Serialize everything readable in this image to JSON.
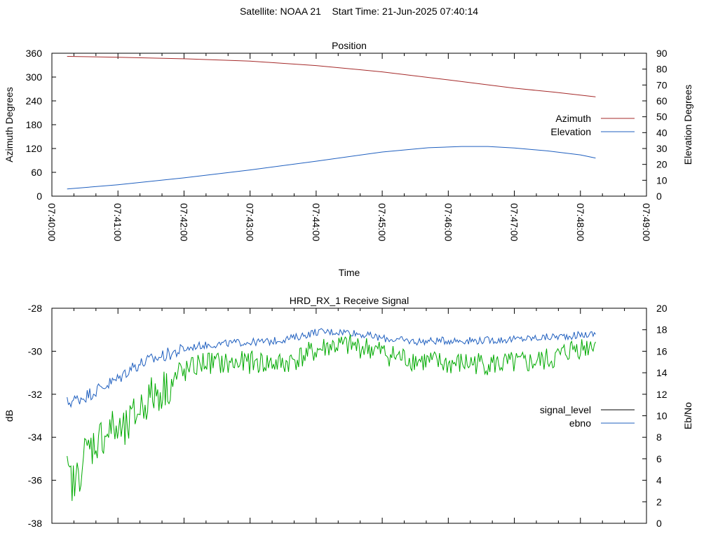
{
  "figure_title": "Satellite: NOAA 21    Start Time: 21-Jun-2025 07:40:14",
  "colors": {
    "azimuth": "#a52a2a",
    "elevation": "#1f5fbf",
    "signal_level": "#000000",
    "ebno": "#1f5fbf",
    "green_trace": "#00aa00"
  },
  "chart_data": [
    {
      "type": "line",
      "title": "Position",
      "xlabel": "Time",
      "ylabel": "Azimuth Degrees",
      "y2label": "Elevation Degrees",
      "x_ticks": [
        "07:40:00",
        "07:41:00",
        "07:42:00",
        "07:43:00",
        "07:44:00",
        "07:45:00",
        "07:46:00",
        "07:47:00",
        "07:48:00",
        "07:49:00"
      ],
      "xlim_minutes": [
        0,
        9
      ],
      "ylim": [
        0,
        360
      ],
      "y_ticks": [
        "0",
        "60",
        "120",
        "180",
        "240",
        "300",
        "360"
      ],
      "y2lim": [
        0,
        90
      ],
      "y2_ticks": [
        "0",
        "10",
        "20",
        "30",
        "40",
        "50",
        "60",
        "70",
        "80",
        "90"
      ],
      "legend_position": "right",
      "series": [
        {
          "name": "Azimuth",
          "axis": "y",
          "color_key": "azimuth",
          "points_minutes": [
            [
              0.23,
              352
            ],
            [
              1,
              350
            ],
            [
              2,
              346
            ],
            [
              3,
              340
            ],
            [
              4,
              329
            ],
            [
              5,
              313
            ],
            [
              6,
              293
            ],
            [
              7,
              272
            ],
            [
              7.6,
              262
            ],
            [
              8.23,
              250
            ]
          ]
        },
        {
          "name": "Elevation",
          "axis": "y2",
          "color_key": "elevation",
          "points_minutes": [
            [
              0.23,
              4.5
            ],
            [
              1,
              7.2
            ],
            [
              2,
              11.5
            ],
            [
              3,
              16.5
            ],
            [
              4,
              22
            ],
            [
              5,
              27.8
            ],
            [
              5.7,
              30.5
            ],
            [
              6.2,
              31.3
            ],
            [
              6.6,
              31.3
            ],
            [
              7,
              30.3
            ],
            [
              7.5,
              28.5
            ],
            [
              8,
              26
            ],
            [
              8.23,
              24
            ]
          ]
        }
      ]
    },
    {
      "type": "line",
      "title": "HRD_RX_1 Receive Signal",
      "ylabel": "dB",
      "y2label": "Eb/No",
      "xlim_minutes": [
        0,
        9
      ],
      "ylim": [
        -38,
        -28
      ],
      "y_ticks": [
        "-38",
        "-36",
        "-34",
        "-32",
        "-30",
        "-28"
      ],
      "y2lim": [
        0,
        20
      ],
      "y2_ticks": [
        "0",
        "2",
        "4",
        "6",
        "8",
        "10",
        "12",
        "14",
        "16",
        "18",
        "20"
      ],
      "legend_position": "right",
      "series": [
        {
          "name": "signal_level",
          "axis": "y",
          "color_key": "signal_level",
          "in_legend_only": true,
          "points_minutes": []
        },
        {
          "name": "ebno",
          "axis": "y2",
          "color_key": "ebno",
          "points_minutes": [
            [
              0.23,
              11.2
            ],
            [
              0.5,
              11.8
            ],
            [
              0.8,
              12.8
            ],
            [
              1.0,
              13.4
            ],
            [
              1.2,
              14.5
            ],
            [
              1.5,
              15.2
            ],
            [
              1.8,
              15.8
            ],
            [
              2.2,
              16.5
            ],
            [
              2.8,
              16.8
            ],
            [
              3.3,
              16.9
            ],
            [
              3.7,
              17.3
            ],
            [
              4.0,
              17.8
            ],
            [
              4.5,
              17.8
            ],
            [
              5.0,
              17.2
            ],
            [
              5.5,
              16.9
            ],
            [
              6.0,
              17.0
            ],
            [
              6.5,
              17.0
            ],
            [
              7.0,
              17.1
            ],
            [
              7.5,
              17.3
            ],
            [
              8.0,
              17.5
            ],
            [
              8.23,
              17.6
            ]
          ]
        },
        {
          "name": "",
          "axis": "y2",
          "color_key": "green_trace",
          "points_minutes": [
            [
              0.23,
              4.5
            ],
            [
              0.35,
              3.5
            ],
            [
              0.5,
              6.5
            ],
            [
              0.7,
              7.8
            ],
            [
              0.9,
              8.8
            ],
            [
              1.1,
              8.3
            ],
            [
              1.3,
              10.5
            ],
            [
              1.5,
              11.8
            ],
            [
              1.7,
              12.5
            ],
            [
              2.0,
              14.0
            ],
            [
              2.3,
              15.0
            ],
            [
              2.7,
              14.8
            ],
            [
              3.0,
              15.0
            ],
            [
              3.5,
              14.8
            ],
            [
              3.9,
              15.8
            ],
            [
              4.2,
              16.5
            ],
            [
              4.5,
              16.5
            ],
            [
              4.8,
              16.3
            ],
            [
              5.2,
              15.5
            ],
            [
              5.6,
              15.1
            ],
            [
              6.0,
              14.8
            ],
            [
              6.4,
              14.9
            ],
            [
              6.8,
              14.8
            ],
            [
              7.2,
              14.9
            ],
            [
              7.6,
              15.3
            ],
            [
              7.9,
              16.3
            ],
            [
              8.1,
              16.4
            ],
            [
              8.23,
              17.0
            ]
          ]
        }
      ]
    }
  ]
}
